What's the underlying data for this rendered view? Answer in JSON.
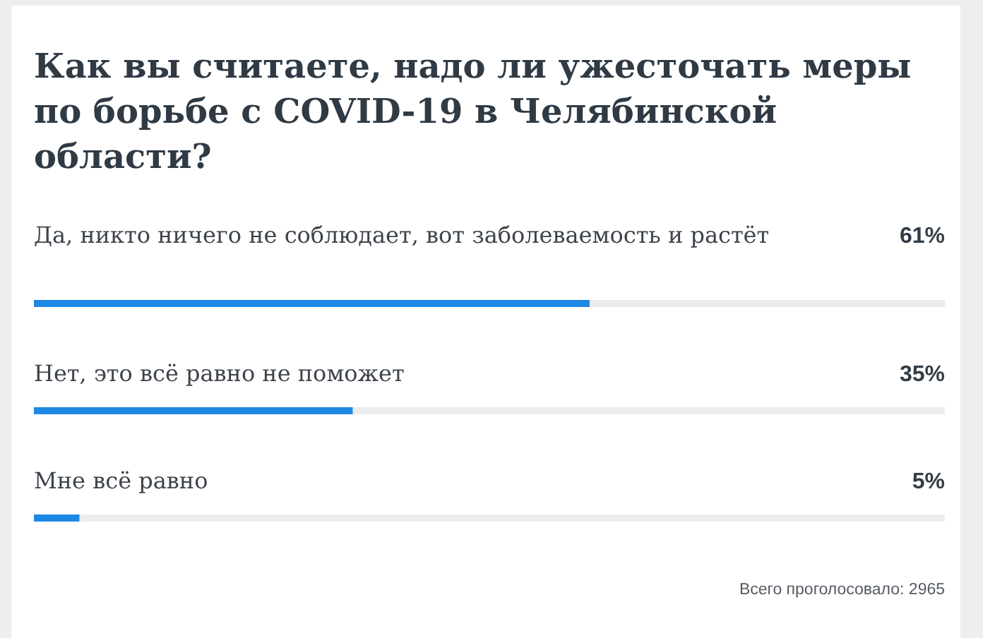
{
  "chart_data": {
    "type": "bar",
    "orientation": "horizontal",
    "title": "Как вы считаете, надо ли ужесточать меры по борьбе с COVID-19 в Челябинской области?",
    "categories": [
      "Да, никто ничего не соблюдает, вот заболеваемость и растёт",
      "Нет, это всё равно не поможет",
      "Мне всё равно"
    ],
    "values": [
      61,
      35,
      5
    ],
    "value_labels": [
      "61%",
      "35%",
      "5%"
    ],
    "color": "#1e88e5",
    "xlim": [
      0,
      100
    ],
    "annotations": [
      "Всего проголосовало: 2965"
    ]
  }
}
